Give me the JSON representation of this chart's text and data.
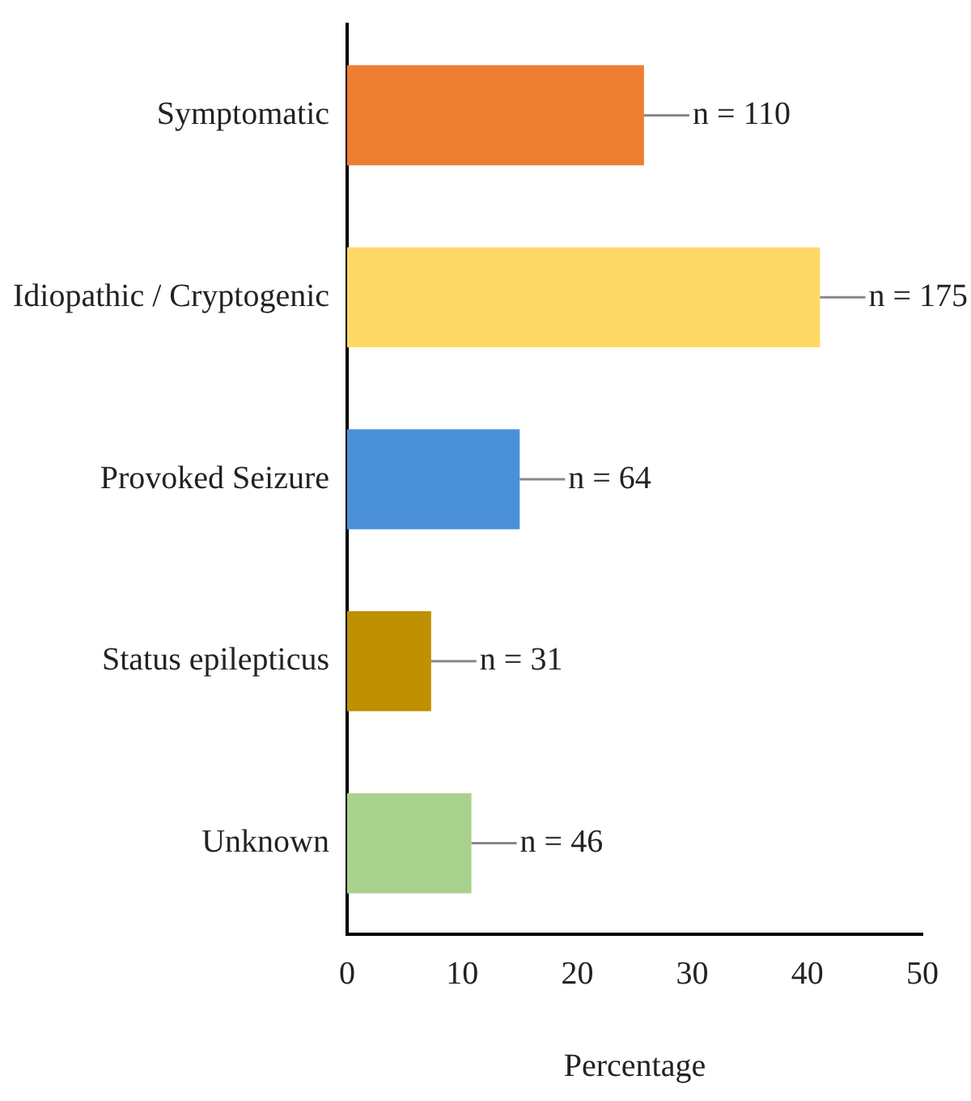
{
  "chart_data": {
    "type": "bar",
    "orientation": "horizontal",
    "xlabel": "Percentage",
    "categories": [
      "Symptomatic",
      "Idiopathic / Cryptogenic",
      "Provoked Seizure",
      "Status epilepticus",
      "Unknown"
    ],
    "values": [
      25.8,
      41.1,
      15.0,
      7.3,
      10.8
    ],
    "colors": [
      "#ed7d31",
      "#ffd966",
      "#4a90d9",
      "#bf9000",
      "#a9d18e"
    ],
    "annotations": [
      {
        "text": "n = 110",
        "x": 25.8,
        "y": "Symptomatic"
      },
      {
        "text": "n = 175",
        "x": 41.1,
        "y": "Idiopathic / Cryptogenic"
      },
      {
        "text": "n = 64",
        "x": 15.0,
        "y": "Provoked Seizure"
      },
      {
        "text": "n = 31",
        "x": 7.3,
        "y": "Status epilepticus"
      },
      {
        "text": "n = 46",
        "x": 10.8,
        "y": "Unknown"
      }
    ],
    "xlim": [
      0,
      50
    ],
    "xticks": [
      0,
      10,
      20,
      30,
      40,
      50
    ],
    "grid": false,
    "legend": false
  }
}
